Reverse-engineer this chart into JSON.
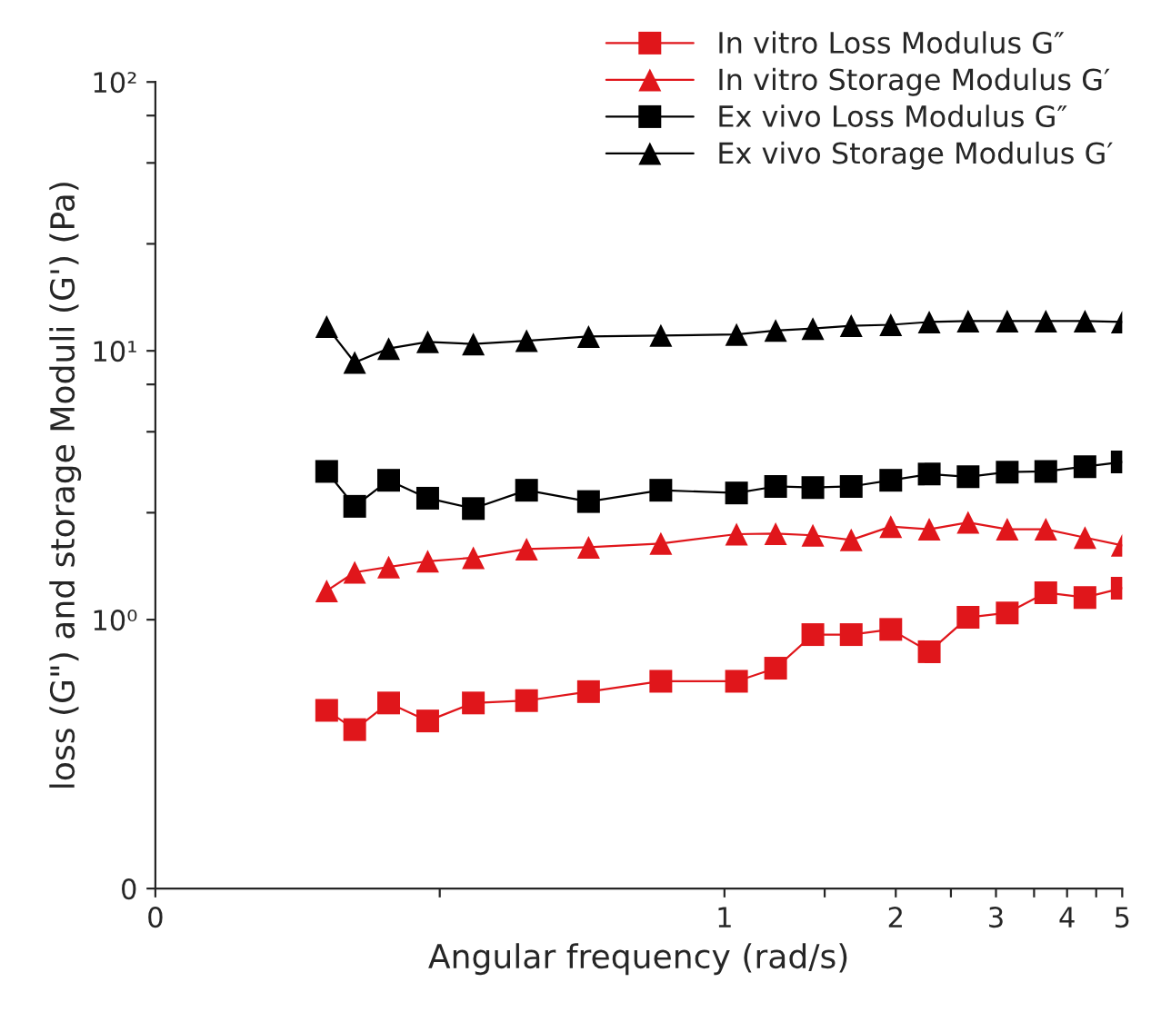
{
  "chart_data": {
    "type": "line",
    "xlabel": "Angular frequency (rad/s)",
    "ylabel": "loss (G\") and storage Moduli (G') (Pa)",
    "log": "xy",
    "grid": false,
    "legend": "top right",
    "xlim": [
      0.1,
      5
    ],
    "xticks": [
      {
        "value": 0.1,
        "label": "0"
      },
      {
        "value": 0.316,
        "label": null
      },
      1,
      {
        "value": 1.5,
        "label": null
      },
      2,
      {
        "value": 2.5,
        "label": null
      },
      3,
      {
        "value": 3.5,
        "label": null
      },
      4,
      {
        "value": 4.5,
        "label": null
      },
      5
    ],
    "ylim": [
      0.1,
      100
    ],
    "yticks": [
      {
        "value": 0.1,
        "label": "0"
      },
      {
        "value": 1,
        "label": "10⁰"
      },
      {
        "value": 2.5,
        "label": null
      },
      {
        "value": 5,
        "label": null
      },
      {
        "value": 7.5,
        "label": null
      },
      {
        "value": 10,
        "label": "10¹"
      },
      {
        "value": 25,
        "label": null
      },
      {
        "value": 50,
        "label": null
      },
      {
        "value": 75,
        "label": null
      },
      {
        "value": 100,
        "label": "10²"
      }
    ],
    "x": [
      0.2,
      0.224,
      0.257,
      0.301,
      0.362,
      0.449,
      0.577,
      0.773,
      1.05,
      1.23,
      1.43,
      1.67,
      1.96,
      2.29,
      2.68,
      3.14,
      3.67,
      4.3,
      5.0
    ],
    "series": [
      {
        "name": "In vitro Loss Modulus G″",
        "color": "#e0161b",
        "marker": "square",
        "values": [
          0.46,
          0.39,
          0.49,
          0.42,
          0.49,
          0.5,
          0.54,
          0.59,
          0.59,
          0.66,
          0.88,
          0.88,
          0.92,
          0.76,
          1.02,
          1.06,
          1.26,
          1.21,
          1.31
        ]
      },
      {
        "name": "In vitro Storage Modulus G′",
        "color": "#e0161b",
        "marker": "triangle",
        "values": [
          1.28,
          1.5,
          1.57,
          1.65,
          1.7,
          1.83,
          1.86,
          1.92,
          2.08,
          2.09,
          2.06,
          1.98,
          2.22,
          2.17,
          2.3,
          2.17,
          2.17,
          2.02,
          1.89
        ]
      },
      {
        "name": "Ex vivo Loss Modulus G″",
        "color": "#000000",
        "marker": "square",
        "values": [
          3.56,
          2.64,
          3.3,
          2.83,
          2.59,
          3.03,
          2.75,
          3.03,
          2.96,
          3.13,
          3.1,
          3.13,
          3.3,
          3.48,
          3.4,
          3.54,
          3.56,
          3.71,
          3.86
        ]
      },
      {
        "name": "Ex vivo Storage Modulus G′",
        "color": "#000000",
        "marker": "triangle",
        "values": [
          12.3,
          9.05,
          10.2,
          10.8,
          10.6,
          10.9,
          11.3,
          11.4,
          11.5,
          11.9,
          12.1,
          12.4,
          12.5,
          12.8,
          12.9,
          12.9,
          12.9,
          12.9,
          12.8
        ]
      }
    ]
  }
}
